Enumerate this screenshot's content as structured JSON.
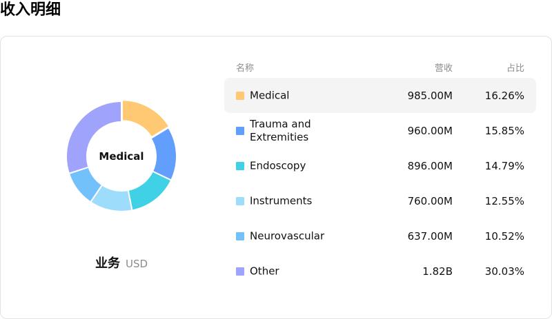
{
  "page": {
    "title": "收入明细"
  },
  "donut": {
    "center_label": "Medical"
  },
  "caption": {
    "main": "业务",
    "unit": "USD"
  },
  "table": {
    "headers": {
      "name": "名称",
      "revenue": "营收",
      "share": "占比"
    },
    "rows": [
      {
        "name": "Medical",
        "revenue": "985.00M",
        "share": "16.26%",
        "color": "#ffc973",
        "highlighted": true
      },
      {
        "name": "Trauma and Extremities",
        "revenue": "960.00M",
        "share": "15.85%",
        "color": "#629ffc",
        "highlighted": false
      },
      {
        "name": "Endoscopy",
        "revenue": "896.00M",
        "share": "14.79%",
        "color": "#40d1e6",
        "highlighted": false
      },
      {
        "name": "Instruments",
        "revenue": "760.00M",
        "share": "12.55%",
        "color": "#9ddcfb",
        "highlighted": false
      },
      {
        "name": "Neurovascular",
        "revenue": "637.00M",
        "share": "10.52%",
        "color": "#72c1fb",
        "highlighted": false
      },
      {
        "name": "Other",
        "revenue": "1.82B",
        "share": "30.03%",
        "color": "#a0a3fc",
        "highlighted": false
      }
    ]
  },
  "chart_data": {
    "type": "pie",
    "donut": true,
    "categories": [
      "Medical",
      "Trauma and Extremities",
      "Endoscopy",
      "Instruments",
      "Neurovascular",
      "Other"
    ],
    "values": [
      16.26,
      15.85,
      14.79,
      12.55,
      10.52,
      30.03
    ],
    "value_unit": "%",
    "revenue": [
      "985.00M",
      "960.00M",
      "896.00M",
      "760.00M",
      "637.00M",
      "1.82B"
    ],
    "colors": [
      "#ffc973",
      "#629ffc",
      "#40d1e6",
      "#9ddcfb",
      "#72c1fb",
      "#a0a3fc"
    ],
    "highlighted": "Medical"
  }
}
